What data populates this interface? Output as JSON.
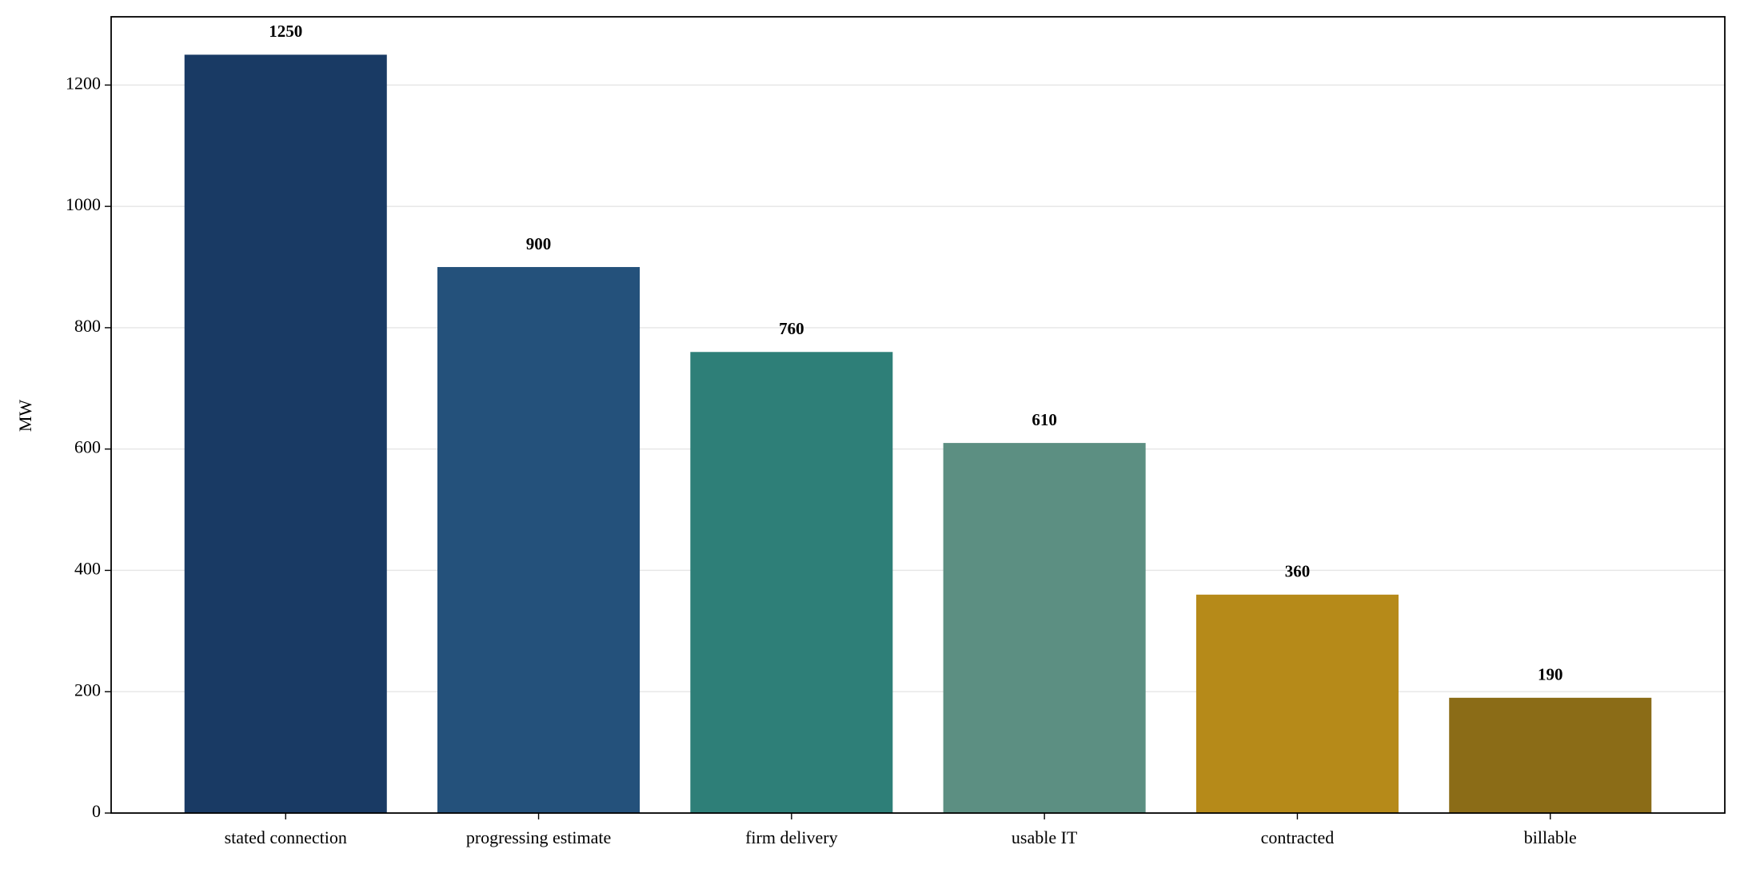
{
  "chart_data": {
    "type": "bar",
    "y_label": "MW",
    "categories": [
      "stated connection",
      "progressing estimate",
      "firm delivery",
      "usable IT",
      "contracted",
      "billable"
    ],
    "values": [
      1250,
      900,
      760,
      610,
      360,
      190
    ],
    "colors": [
      "#193a64",
      "#24517b",
      "#2e7f78",
      "#5c8f82",
      "#b68a19",
      "#8b6c17"
    ],
    "ylim": [
      0,
      1312.5
    ],
    "yticks": [
      0,
      200,
      400,
      600,
      800,
      1000,
      1200
    ],
    "grid": true
  }
}
